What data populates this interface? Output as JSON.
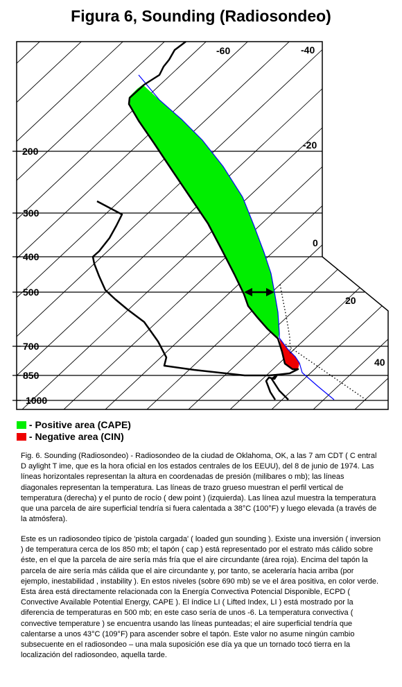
{
  "title": "Figura 6, Sounding (Radiosondeo)",
  "pressure_labels": [
    "200",
    "300",
    "400",
    "500",
    "700",
    "850",
    "1000"
  ],
  "temperature_labels": [
    "-60",
    "-40",
    "-20",
    "0",
    "20",
    "40"
  ],
  "legend": {
    "cape_label": "- Positive area (CAPE)",
    "cin_label": "- Negative area (CIN)",
    "cape_color": "#00ee00",
    "cin_color": "#ee0000"
  },
  "caption": {
    "p1": "Fig. 6. Sounding (Radiosondeo) - Radiosondeo de la ciudad de Oklahoma, OK, a las 7 am CDT ( C entral D aylight T ime, que es la hora oficial en los estados centrales de los EEUU), del 8 de junio de 1974. Las líneas horizontales representan la altura en coordenadas de presión (milibares o mb); las líneas diagonales representan la temperatura. Las líneas de trazo grueso muestran el perfil vertical de temperatura (derecha) y el punto de rocío ( dew point ) (izquierda). Las línea azul muestra la temperatura que una parcela de aire superficial tendría si fuera calentada a 38°C (100°F) y luego elevada (a través de la atmósfera).",
    "p2": "Este es un radiosondeo típico de 'pistola cargada' ( loaded gun sounding ). Existe una inversión ( inversion ) de temperatura cerca de los 850 mb; el tapón ( cap ) está representado por el estrato más cálido sobre éste, en el que la parcela de aire sería más fría que el aire circundante (área roja). Encima del tapón la parcela de aire sería más cálida que el aire circundante y, por tanto, se aceleraría hacia arriba (por ejemplo, inestabilidad , instability ). En estos niveles (sobre 690 mb) se ve el área positiva, en color verde. Esta área está directamente relacionada con la Energía Convectiva Potencial Disponible, ECPD ( Convective Available Potential Energy, CAPE ). El índice LI ( Lifted Index, LI ) está mostrado por la diferencia de temperaturas en 500 mb; en este caso sería de unos -6. La temperatura convectiva ( convective temperature ) se encuentra usando las líneas punteadas; el aire superficial tendría que calentarse a unos 43°C (109°F) para ascender sobre el tapón. Este valor no asume ningún cambio subsecuente en el radiosondeo – una mala suposición ese día ya que un tornado tocó tierra en la localización del radiosondeo, aquella tarde."
  }
}
